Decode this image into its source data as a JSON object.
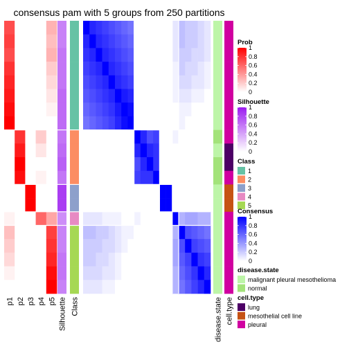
{
  "chart_data": {
    "type": "heatmap",
    "title": "consensus pam with 5 groups from 250 partitions",
    "n_samples": 20,
    "class_sizes": [
      8,
      4,
      2,
      1,
      5
    ],
    "columns": {
      "prob_labels": [
        "p1",
        "p2",
        "p3",
        "p4",
        "p5"
      ],
      "silhouette_label": "Silhouette",
      "class_label": "Class",
      "disease_state_label": "disease.state",
      "cell_type_label": "cell.type"
    },
    "prob": [
      [
        0.7,
        0.0,
        0.0,
        0.0,
        0.3
      ],
      [
        0.75,
        0.0,
        0.0,
        0.0,
        0.25
      ],
      [
        0.7,
        0.0,
        0.0,
        0.0,
        0.3
      ],
      [
        0.8,
        0.0,
        0.0,
        0.0,
        0.2
      ],
      [
        0.85,
        0.0,
        0.0,
        0.0,
        0.15
      ],
      [
        0.9,
        0.0,
        0.0,
        0.0,
        0.1
      ],
      [
        0.95,
        0.0,
        0.0,
        0.0,
        0.05
      ],
      [
        1.0,
        0.0,
        0.0,
        0.0,
        0.0
      ],
      [
        0.0,
        0.8,
        0.0,
        0.2,
        0.0
      ],
      [
        0.0,
        0.9,
        0.0,
        0.1,
        0.0
      ],
      [
        0.0,
        1.0,
        0.0,
        0.0,
        0.0
      ],
      [
        0.0,
        0.95,
        0.0,
        0.05,
        0.0
      ],
      [
        0.0,
        0.0,
        1.0,
        0.0,
        0.0
      ],
      [
        0.0,
        0.0,
        1.0,
        0.0,
        0.0
      ],
      [
        0.05,
        0.0,
        0.0,
        0.6,
        0.35
      ],
      [
        0.25,
        0.0,
        0.0,
        0.0,
        0.75
      ],
      [
        0.2,
        0.0,
        0.0,
        0.0,
        0.8
      ],
      [
        0.15,
        0.0,
        0.0,
        0.0,
        0.85
      ],
      [
        0.05,
        0.0,
        0.0,
        0.0,
        0.95
      ],
      [
        0.0,
        0.0,
        0.0,
        0.0,
        1.0
      ]
    ],
    "silhouette": [
      0.55,
      0.55,
      0.6,
      0.6,
      0.6,
      0.65,
      0.65,
      0.65,
      0.6,
      0.65,
      0.7,
      0.6,
      0.85,
      0.85,
      0.5,
      0.55,
      0.55,
      0.6,
      0.6,
      0.55
    ],
    "class": [
      1,
      1,
      1,
      1,
      1,
      1,
      1,
      1,
      2,
      2,
      2,
      2,
      3,
      3,
      4,
      5,
      5,
      5,
      5,
      5
    ],
    "disease_state": [
      "malignant pleural mesothelioma",
      "malignant pleural mesothelioma",
      "malignant pleural mesothelioma",
      "malignant pleural mesothelioma",
      "malignant pleural mesothelioma",
      "malignant pleural mesothelioma",
      "malignant pleural mesothelioma",
      "malignant pleural mesothelioma",
      "normal",
      "malignant pleural mesothelioma",
      "normal",
      "normal",
      "malignant pleural mesothelioma",
      "malignant pleural mesothelioma",
      "malignant pleural mesothelioma",
      "malignant pleural mesothelioma",
      "malignant pleural mesothelioma",
      "malignant pleural mesothelioma",
      "malignant pleural mesothelioma",
      "malignant pleural mesothelioma"
    ],
    "cell_type": [
      "pleural",
      "pleural",
      "pleural",
      "pleural",
      "pleural",
      "pleural",
      "pleural",
      "pleural",
      "pleural",
      "lung",
      "lung",
      "pleural",
      "mesothelial cell line",
      "mesothelial cell line",
      "pleural",
      "pleural",
      "pleural",
      "pleural",
      "pleural",
      "pleural"
    ],
    "consensus": [
      [
        1.0,
        0.85,
        0.8,
        0.75,
        0.7,
        0.65,
        0.6,
        0.55,
        0.0,
        0.0,
        0.0,
        0.0,
        0.0,
        0.0,
        0.1,
        0.25,
        0.2,
        0.2,
        0.15,
        0.1
      ],
      [
        0.85,
        1.0,
        0.85,
        0.8,
        0.75,
        0.7,
        0.65,
        0.6,
        0.0,
        0.0,
        0.0,
        0.0,
        0.0,
        0.0,
        0.1,
        0.25,
        0.2,
        0.2,
        0.15,
        0.1
      ],
      [
        0.8,
        0.85,
        1.0,
        0.85,
        0.8,
        0.75,
        0.7,
        0.65,
        0.0,
        0.0,
        0.0,
        0.0,
        0.0,
        0.0,
        0.1,
        0.2,
        0.2,
        0.15,
        0.15,
        0.1
      ],
      [
        0.75,
        0.8,
        0.85,
        1.0,
        0.85,
        0.8,
        0.75,
        0.7,
        0.0,
        0.0,
        0.0,
        0.0,
        0.0,
        0.0,
        0.05,
        0.2,
        0.15,
        0.15,
        0.1,
        0.05
      ],
      [
        0.7,
        0.75,
        0.8,
        0.85,
        1.0,
        0.85,
        0.8,
        0.75,
        0.0,
        0.0,
        0.0,
        0.0,
        0.0,
        0.0,
        0.05,
        0.15,
        0.15,
        0.1,
        0.1,
        0.05
      ],
      [
        0.65,
        0.7,
        0.75,
        0.8,
        0.85,
        1.0,
        0.9,
        0.85,
        0.0,
        0.0,
        0.0,
        0.0,
        0.0,
        0.0,
        0.05,
        0.1,
        0.1,
        0.05,
        0.05,
        0.0
      ],
      [
        0.6,
        0.65,
        0.7,
        0.75,
        0.8,
        0.9,
        1.0,
        0.95,
        0.0,
        0.0,
        0.0,
        0.0,
        0.0,
        0.0,
        0.0,
        0.05,
        0.05,
        0.0,
        0.0,
        0.0
      ],
      [
        0.55,
        0.6,
        0.65,
        0.7,
        0.75,
        0.85,
        0.95,
        1.0,
        0.0,
        0.0,
        0.0,
        0.0,
        0.0,
        0.0,
        0.0,
        0.05,
        0.0,
        0.0,
        0.0,
        0.0
      ],
      [
        0.0,
        0.0,
        0.0,
        0.0,
        0.0,
        0.0,
        0.0,
        0.0,
        1.0,
        0.85,
        0.7,
        0.75,
        0.0,
        0.0,
        0.05,
        0.0,
        0.0,
        0.0,
        0.0,
        0.0
      ],
      [
        0.0,
        0.0,
        0.0,
        0.0,
        0.0,
        0.0,
        0.0,
        0.0,
        0.85,
        1.0,
        0.85,
        0.8,
        0.0,
        0.0,
        0.0,
        0.0,
        0.0,
        0.0,
        0.0,
        0.0
      ],
      [
        0.0,
        0.0,
        0.0,
        0.0,
        0.0,
        0.0,
        0.0,
        0.0,
        0.7,
        0.85,
        1.0,
        0.8,
        0.0,
        0.0,
        0.0,
        0.0,
        0.0,
        0.0,
        0.0,
        0.0
      ],
      [
        0.0,
        0.0,
        0.0,
        0.0,
        0.0,
        0.0,
        0.0,
        0.0,
        0.75,
        0.8,
        0.8,
        1.0,
        0.0,
        0.0,
        0.0,
        0.0,
        0.0,
        0.0,
        0.0,
        0.0
      ],
      [
        0.0,
        0.0,
        0.0,
        0.0,
        0.0,
        0.0,
        0.0,
        0.0,
        0.0,
        0.0,
        0.0,
        0.0,
        1.0,
        1.0,
        0.0,
        0.0,
        0.0,
        0.0,
        0.0,
        0.0
      ],
      [
        0.0,
        0.0,
        0.0,
        0.0,
        0.0,
        0.0,
        0.0,
        0.0,
        0.0,
        0.0,
        0.0,
        0.0,
        1.0,
        1.0,
        0.0,
        0.0,
        0.0,
        0.0,
        0.0,
        0.0
      ],
      [
        0.1,
        0.1,
        0.1,
        0.05,
        0.05,
        0.05,
        0.0,
        0.0,
        0.05,
        0.0,
        0.0,
        0.0,
        0.0,
        0.0,
        1.0,
        0.3,
        0.35,
        0.35,
        0.3,
        0.3
      ],
      [
        0.25,
        0.25,
        0.2,
        0.2,
        0.15,
        0.1,
        0.05,
        0.05,
        0.0,
        0.0,
        0.0,
        0.0,
        0.0,
        0.0,
        0.3,
        1.0,
        0.7,
        0.65,
        0.6,
        0.55
      ],
      [
        0.2,
        0.2,
        0.2,
        0.15,
        0.15,
        0.1,
        0.05,
        0.0,
        0.0,
        0.0,
        0.0,
        0.0,
        0.0,
        0.0,
        0.35,
        0.7,
        1.0,
        0.75,
        0.7,
        0.65
      ],
      [
        0.2,
        0.2,
        0.15,
        0.15,
        0.1,
        0.05,
        0.0,
        0.0,
        0.0,
        0.0,
        0.0,
        0.0,
        0.0,
        0.0,
        0.35,
        0.65,
        0.75,
        1.0,
        0.8,
        0.75
      ],
      [
        0.15,
        0.15,
        0.15,
        0.1,
        0.1,
        0.05,
        0.0,
        0.0,
        0.0,
        0.0,
        0.0,
        0.0,
        0.0,
        0.0,
        0.3,
        0.6,
        0.7,
        0.8,
        1.0,
        0.85
      ],
      [
        0.1,
        0.1,
        0.1,
        0.05,
        0.05,
        0.0,
        0.0,
        0.0,
        0.0,
        0.0,
        0.0,
        0.0,
        0.0,
        0.0,
        0.3,
        0.55,
        0.65,
        0.75,
        0.85,
        1.0
      ]
    ],
    "legends": {
      "prob": {
        "title": "Prob",
        "ticks": [
          "1",
          "0.8",
          "0.6",
          "0.4",
          "0.2",
          "0"
        ],
        "colors": [
          "#ffffff",
          "#ff0000"
        ]
      },
      "silhouette": {
        "title": "Silhouette",
        "ticks": [
          "1",
          "0.8",
          "0.6",
          "0.4",
          "0.2",
          "0"
        ],
        "colors": [
          "#ffffff",
          "#9b1bf0"
        ]
      },
      "class": {
        "title": "Class",
        "items": [
          {
            "label": "1",
            "color": "#66c2a5"
          },
          {
            "label": "2",
            "color": "#fc8d62"
          },
          {
            "label": "3",
            "color": "#8da0cb"
          },
          {
            "label": "4",
            "color": "#e78ac3"
          },
          {
            "label": "5",
            "color": "#a6d854"
          }
        ]
      },
      "consensus": {
        "title": "Consensus",
        "ticks": [
          "1",
          "0.8",
          "0.6",
          "0.4",
          "0.2",
          "0"
        ],
        "colors": [
          "#ffffff",
          "#0000ff"
        ]
      },
      "disease_state": {
        "title": "disease.state",
        "items": [
          {
            "label": "malignant pleural mesothelioma",
            "color": "#bdf5a8"
          },
          {
            "label": "normal",
            "color": "#a3e37a"
          }
        ]
      },
      "cell_type": {
        "title": "cell.type",
        "items": [
          {
            "label": "lung",
            "color": "#4d0066"
          },
          {
            "label": "mesothelial cell line",
            "color": "#c65214"
          },
          {
            "label": "pleural",
            "color": "#d000a0"
          }
        ]
      }
    }
  }
}
